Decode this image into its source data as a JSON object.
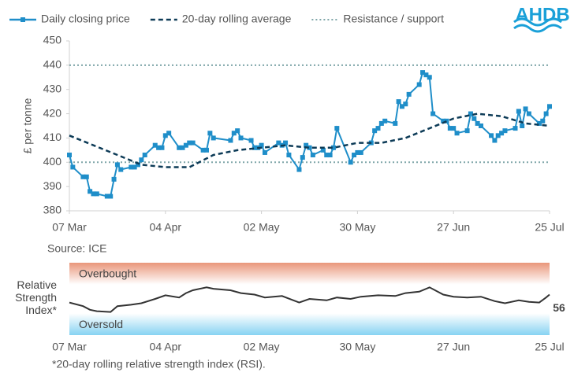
{
  "chart_data": {
    "type": "line",
    "logo": "AHDB",
    "y_label": "£ per tonne",
    "source": "Source: ICE",
    "xlim": [
      "07 Mar",
      "25 Jul"
    ],
    "xticks": [
      "07 Mar",
      "04 Apr",
      "02 May",
      "30 May",
      "27 Jun",
      "25 Jul"
    ],
    "ylim": [
      380,
      450
    ],
    "yticks": [
      380,
      390,
      400,
      410,
      420,
      430,
      440,
      450
    ],
    "grid": false,
    "series": [
      {
        "name": "Daily closing price",
        "color": "#1f8ec9",
        "style": "markers",
        "x": [
          "07 Mar",
          "08 Mar",
          "11 Mar",
          "12 Mar",
          "13 Mar",
          "14 Mar",
          "15 Mar",
          "18 Mar",
          "19 Mar",
          "20 Mar",
          "21 Mar",
          "22 Mar",
          "25 Mar",
          "26 Mar",
          "27 Mar",
          "28 Mar",
          "29 Mar",
          "01 Apr",
          "02 Apr",
          "03 Apr",
          "04 Apr",
          "05 Apr",
          "08 Apr",
          "09 Apr",
          "10 Apr",
          "11 Apr",
          "12 Apr",
          "15 Apr",
          "16 Apr",
          "17 Apr",
          "18 Apr",
          "23 Apr",
          "24 Apr",
          "25 Apr",
          "26 Apr",
          "29 Apr",
          "30 Apr",
          "01 May",
          "02 May",
          "03 May",
          "07 May",
          "08 May",
          "09 May",
          "10 May",
          "13 May",
          "14 May",
          "15 May",
          "16 May",
          "17 May",
          "20 May",
          "21 May",
          "22 May",
          "23 May",
          "24 May",
          "28 May",
          "29 May",
          "30 May",
          "31 May",
          "03 Jun",
          "04 Jun",
          "05 Jun",
          "06 Jun",
          "07 Jun",
          "10 Jun",
          "11 Jun",
          "12 Jun",
          "13 Jun",
          "14 Jun",
          "17 Jun",
          "18 Jun",
          "19 Jun",
          "20 Jun",
          "21 Jun",
          "24 Jun",
          "25 Jun",
          "26 Jun",
          "27 Jun",
          "28 Jun",
          "01 Jul",
          "02 Jul",
          "03 Jul",
          "04 Jul",
          "05 Jul",
          "08 Jul",
          "09 Jul",
          "10 Jul",
          "11 Jul",
          "12 Jul",
          "15 Jul",
          "16 Jul",
          "17 Jul",
          "18 Jul",
          "19 Jul",
          "22 Jul",
          "23 Jul",
          "24 Jul",
          "25 Jul"
        ],
        "values": [
          403,
          398,
          394,
          394,
          388,
          387,
          387,
          386,
          386,
          393,
          399,
          397,
          398,
          398,
          399,
          401,
          403,
          407,
          406,
          406,
          411,
          412,
          406,
          406,
          407,
          408,
          408,
          405,
          405,
          412,
          410,
          409,
          412,
          413,
          410,
          409,
          406,
          406,
          407,
          404,
          408,
          407,
          408,
          403,
          397,
          402,
          407,
          406,
          403,
          405,
          403,
          403,
          406,
          414,
          400,
          403,
          404,
          404,
          408,
          413,
          414,
          416,
          417,
          416,
          425,
          423,
          424,
          428,
          432,
          437,
          436,
          435,
          420,
          417,
          417,
          414,
          414,
          412,
          413,
          420,
          418,
          416,
          415,
          411,
          409,
          411,
          412,
          413,
          414,
          421,
          415,
          422,
          420,
          416,
          417,
          420,
          423
        ]
      },
      {
        "name": "20-day rolling average",
        "color": "#0d3b57",
        "style": "dashed",
        "x": [
          "07 Mar",
          "14 Mar",
          "21 Mar",
          "28 Mar",
          "04 Apr",
          "11 Apr",
          "18 Apr",
          "25 Apr",
          "02 May",
          "09 May",
          "16 May",
          "23 May",
          "30 May",
          "06 Jun",
          "13 Jun",
          "20 Jun",
          "27 Jun",
          "04 Jul",
          "11 Jul",
          "18 Jul",
          "25 Jul"
        ],
        "values": [
          411,
          407,
          403,
          399,
          398,
          398,
          403,
          405,
          406,
          407,
          406,
          406,
          408,
          408,
          410,
          414,
          418,
          420,
          419,
          416,
          415
        ]
      }
    ],
    "levels": {
      "name": "Resistance / support",
      "color": "#7fa6a9",
      "style": "dotted",
      "values": [
        440,
        400
      ]
    },
    "rsi": {
      "label": "Relative Strength Index*",
      "footnote": "*20-day rolling relative strength index (RSI).",
      "ylim": [
        0,
        100
      ],
      "color": "#333333",
      "bands": [
        {
          "label": "Overbought",
          "range": [
            70,
            100
          ],
          "color": "#e9967a"
        },
        {
          "label": "Oversold",
          "range": [
            0,
            30
          ],
          "color": "#87d3f2"
        }
      ],
      "x": [
        "07 Mar",
        "11 Mar",
        "13 Mar",
        "15 Mar",
        "19 Mar",
        "21 Mar",
        "25 Mar",
        "28 Mar",
        "01 Apr",
        "04 Apr",
        "08 Apr",
        "10 Apr",
        "12 Apr",
        "16 Apr",
        "18 Apr",
        "23 Apr",
        "26 Apr",
        "30 Apr",
        "03 May",
        "08 May",
        "13 May",
        "16 May",
        "21 May",
        "24 May",
        "28 May",
        "31 May",
        "05 Jun",
        "10 Jun",
        "13 Jun",
        "17 Jun",
        "20 Jun",
        "24 Jun",
        "27 Jun",
        "01 Jul",
        "05 Jul",
        "09 Jul",
        "12 Jul",
        "16 Jul",
        "19 Jul",
        "22 Jul",
        "24 Jul",
        "25 Jul"
      ],
      "values": [
        45,
        40,
        35,
        33,
        32,
        40,
        42,
        44,
        50,
        55,
        52,
        58,
        62,
        66,
        64,
        62,
        58,
        56,
        52,
        54,
        45,
        50,
        48,
        52,
        50,
        53,
        55,
        54,
        58,
        60,
        66,
        56,
        53,
        52,
        53,
        47,
        44,
        48,
        46,
        45,
        52,
        56
      ]
    }
  }
}
